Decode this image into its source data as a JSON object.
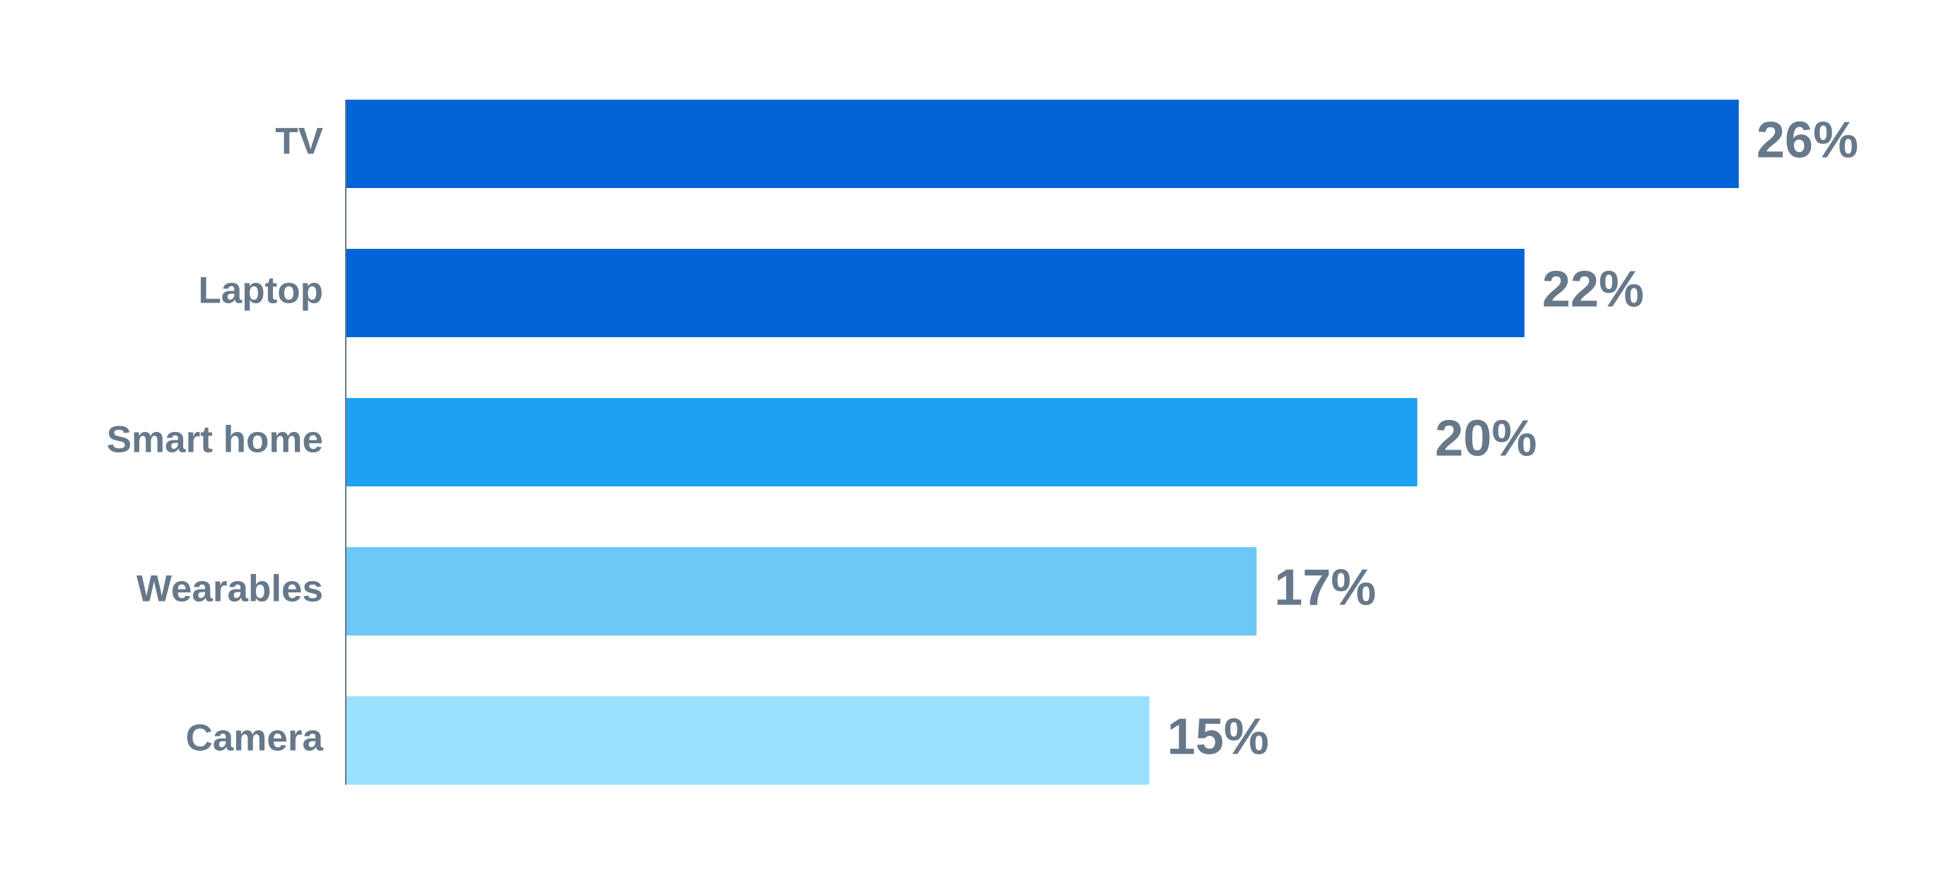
{
  "chart_data": {
    "type": "hbar",
    "categories": [
      "TV",
      "Laptop",
      "Smart home",
      "Wearables",
      "Camera"
    ],
    "values": [
      26,
      22,
      20,
      17,
      15
    ],
    "value_labels": [
      "26%",
      "22%",
      "20%",
      "17%",
      "15%"
    ],
    "colors": [
      "#0063d6",
      "#0063d6",
      "#1ea1f2",
      "#6ec8f6",
      "#99e1fd"
    ],
    "xlim": [
      0,
      26
    ]
  }
}
